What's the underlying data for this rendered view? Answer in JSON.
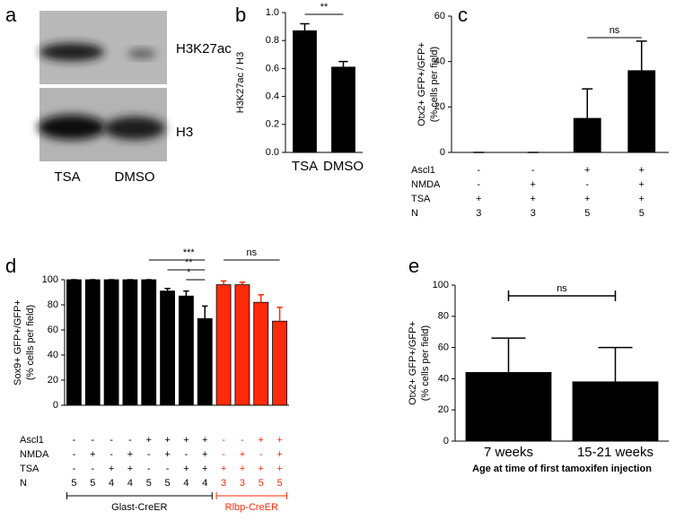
{
  "blot": {
    "panel": "a",
    "bands": [
      "H3K27ac",
      "H3"
    ],
    "lanes": [
      "TSA",
      "DMSO"
    ]
  },
  "chart_data": [
    {
      "type": "bar",
      "panel": "b",
      "ylabel": [
        "H3K27ac / H3"
      ],
      "categories": [
        "TSA",
        "DMSO"
      ],
      "series": [
        {
          "color": "#000000",
          "values": [
            0.87,
            0.61
          ],
          "errors": [
            0.05,
            0.04
          ]
        }
      ],
      "ylim": [
        0,
        1
      ],
      "yticks": [
        {
          "value": 0,
          "label": "0.0"
        },
        {
          "value": 0.2,
          "label": "0.2"
        },
        {
          "value": 0.4,
          "label": "0.4"
        },
        {
          "value": 0.6,
          "label": "0.6"
        },
        {
          "value": 0.8,
          "label": "0.8"
        },
        {
          "value": 1,
          "label": "1.0"
        }
      ],
      "brackets": [
        {
          "label": "**"
        }
      ]
    },
    {
      "type": "bar",
      "panel": "c",
      "ylabel": [
        "Otx2+ GFP+/GFP+",
        "(% cells per field)"
      ],
      "series": [
        {
          "color": "#000000",
          "values": [
            0,
            0,
            15,
            36
          ],
          "errors": [
            0,
            0,
            13,
            13
          ],
          "conditions": [
            {
              "name": "Ascl1",
              "values": [
                "-",
                "-",
                "+",
                "+"
              ]
            },
            {
              "name": "NMDA",
              "values": [
                "-",
                "+",
                "-",
                "+"
              ]
            },
            {
              "name": "TSA",
              "values": [
                "+",
                "+",
                "+",
                "+"
              ]
            },
            {
              "name": "N",
              "values": [
                "3",
                "3",
                "5",
                "5"
              ]
            }
          ]
        }
      ],
      "ylim": [
        0,
        60
      ],
      "yticks": [
        0,
        20,
        40,
        60
      ],
      "brackets": [
        {
          "label": "ns"
        }
      ]
    },
    {
      "type": "bar",
      "panel": "d",
      "ylabel": [
        "Sox9+ GFP+/GFP+",
        "(% cells per field)"
      ],
      "series": [
        {
          "name": "Glast-CreER",
          "color": "#000000",
          "values": [
            100,
            100,
            100,
            100,
            100,
            91,
            87,
            69
          ],
          "errors": [
            0,
            0,
            0,
            0,
            0,
            2,
            4,
            10
          ],
          "conditions": [
            {
              "name": "Ascl1",
              "values": [
                "-",
                "-",
                "-",
                "-",
                "+",
                "+",
                "+",
                "+"
              ]
            },
            {
              "name": "NMDA",
              "values": [
                "-",
                "+",
                "-",
                "+",
                "-",
                "+",
                "-",
                "+"
              ]
            },
            {
              "name": "TSA",
              "values": [
                "-",
                "-",
                "+",
                "+",
                "-",
                "-",
                "+",
                "+"
              ]
            },
            {
              "name": "N",
              "values": [
                "5",
                "5",
                "4",
                "4",
                "5",
                "5",
                "4",
                "4"
              ]
            }
          ]
        },
        {
          "name": "Rlbp-CreER",
          "color": "#ff2a0a",
          "values": [
            96,
            96,
            82,
            67
          ],
          "errors": [
            3,
            2,
            6,
            11
          ],
          "conditions": [
            {
              "name": "Ascl1",
              "values": [
                "-",
                "-",
                "+",
                "+"
              ]
            },
            {
              "name": "NMDA",
              "values": [
                "-",
                "+",
                "-",
                "+"
              ]
            },
            {
              "name": "TSA",
              "values": [
                "+",
                "+",
                "+",
                "+"
              ]
            },
            {
              "name": "N",
              "values": [
                "3",
                "3",
                "5",
                "5"
              ]
            }
          ]
        }
      ],
      "ylim": [
        0,
        100
      ],
      "yticks": [
        0,
        20,
        40,
        60,
        80,
        100
      ],
      "brackets": [
        {
          "label": "***"
        },
        {
          "label": "**"
        },
        {
          "label": "*"
        },
        {
          "label": "ns"
        }
      ]
    },
    {
      "type": "bar",
      "panel": "e",
      "ylabel": [
        "Otx2+ GFP+/GFP+",
        "(% cells per field)"
      ],
      "xlabel": "Age at time of first tamoxifen injection",
      "categories": [
        "7 weeks",
        "15-21 weeks"
      ],
      "series": [
        {
          "color": "#000000",
          "values": [
            44,
            38
          ],
          "errors": [
            22,
            22
          ]
        }
      ],
      "ylim": [
        0,
        100
      ],
      "yticks": [
        0,
        20,
        40,
        60,
        80,
        100
      ],
      "brackets": [
        {
          "label": "ns"
        }
      ]
    }
  ]
}
